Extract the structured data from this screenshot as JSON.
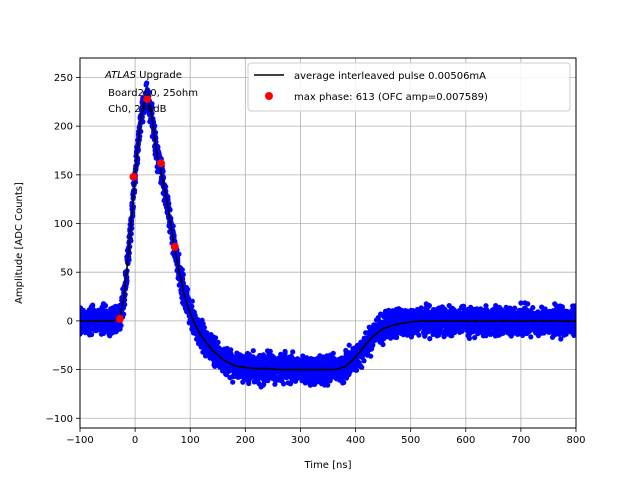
{
  "chart_data": {
    "type": "scatter",
    "title": "",
    "xlabel": "Time [ns]",
    "ylabel": "Amplitude [ADC Counts]",
    "xlim": [
      -100,
      800
    ],
    "ylim": [
      -110,
      270
    ],
    "grid": true,
    "xticks": [
      -100,
      0,
      100,
      200,
      300,
      400,
      500,
      600,
      700,
      800
    ],
    "yticks": [
      -100,
      -50,
      0,
      50,
      100,
      150,
      200,
      250
    ],
    "annotation": {
      "italic": "ATLAS",
      "line1_rest": " Upgrade",
      "line2": " Board260, 25ohm",
      "line3": " Ch0, 270dB"
    },
    "legend": {
      "placement": "top-right",
      "entries": [
        {
          "label": "average interleaved pulse 0.00506mA",
          "marker": "line",
          "color": "#000000"
        },
        {
          "label": "max phase: 613 (OFC amp=0.007589)",
          "marker": "circle",
          "color": "#ff0000"
        }
      ]
    },
    "series": [
      {
        "name": "average interleaved pulse 0.00506mA",
        "kind": "line",
        "color": "#000000",
        "x": [
          -100,
          -40,
          -28,
          -20,
          -12,
          -5,
          0,
          5,
          10,
          15,
          20,
          25,
          30,
          35,
          40,
          45,
          50,
          60,
          70,
          80,
          90,
          100,
          110,
          120,
          130,
          140,
          150,
          160,
          170,
          180,
          190,
          200,
          220,
          240,
          260,
          280,
          300,
          320,
          340,
          360,
          370,
          380,
          390,
          400,
          410,
          420,
          430,
          440,
          450,
          460,
          470,
          480,
          490,
          500,
          520,
          540,
          560,
          580,
          600,
          650,
          700,
          750,
          800
        ],
        "y": [
          0,
          0,
          2,
          25,
          70,
          115,
          150,
          180,
          205,
          222,
          228,
          224,
          212,
          190,
          170,
          158,
          145,
          115,
          80,
          50,
          25,
          8,
          -5,
          -15,
          -23,
          -30,
          -35,
          -40,
          -43,
          -46,
          -47,
          -48,
          -49,
          -49,
          -50,
          -50,
          -50,
          -50,
          -50,
          -50,
          -49,
          -47,
          -43,
          -37,
          -30,
          -23,
          -17,
          -12,
          -8,
          -6,
          -4,
          -3,
          -2,
          -1,
          0,
          0,
          0,
          0,
          0,
          0,
          0,
          0,
          0
        ]
      },
      {
        "name": "samples",
        "kind": "scatter-band",
        "color": "#0000ff",
        "noise_adc": 12
      },
      {
        "name": "max phase: 613 (OFC amp=0.007589)",
        "kind": "scatter",
        "color": "#ff0000",
        "x": [
          -28,
          -3,
          22,
          47,
          72
        ],
        "y": [
          2,
          148,
          228,
          162,
          76
        ]
      }
    ]
  }
}
